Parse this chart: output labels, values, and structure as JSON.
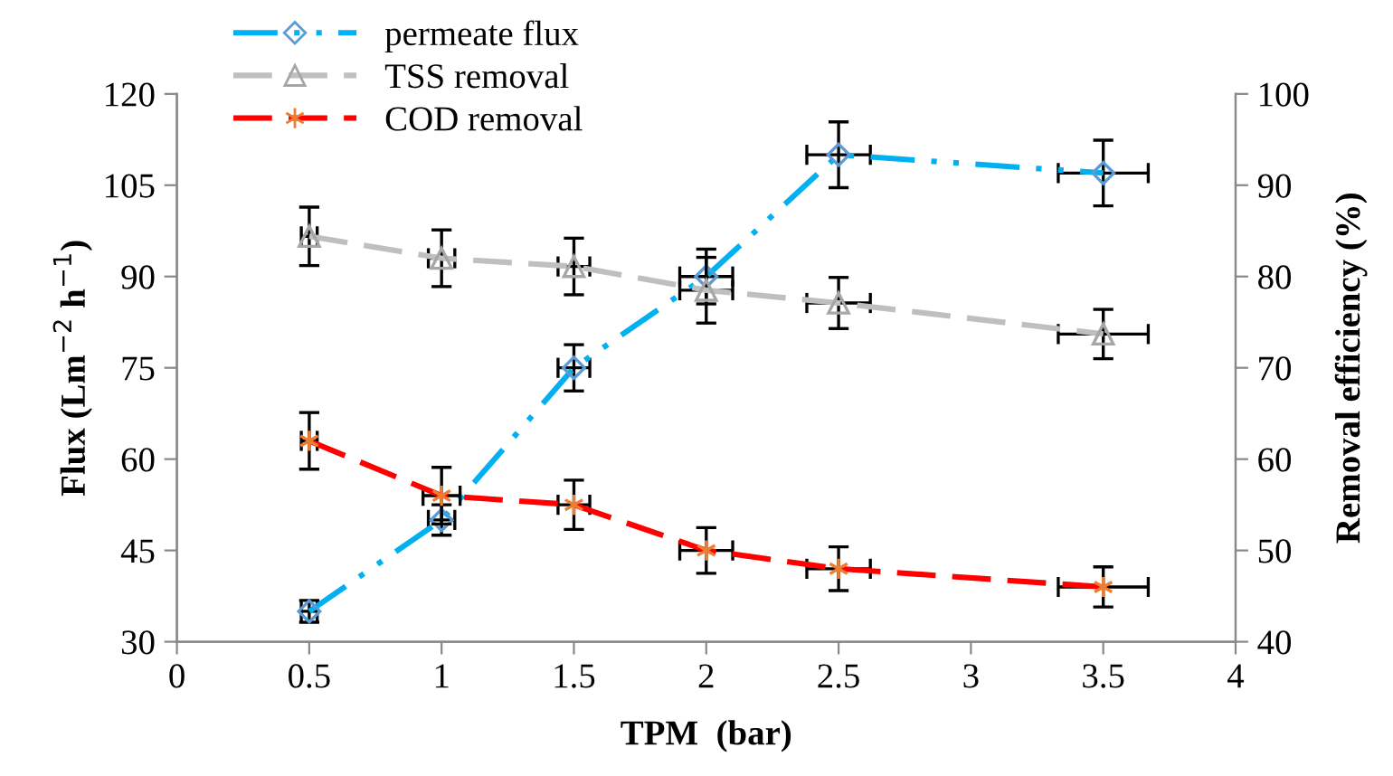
{
  "chart_data": {
    "type": "line",
    "x": [
      0.5,
      1,
      1.5,
      2,
      2.5,
      3.5
    ],
    "xlabel": "TPM  (bar)",
    "ylabel": "Flux (Lm$^{−2}$ h$^{−1}$)",
    "y2label": "Removal efficiency (%)",
    "xlim": [
      0,
      4
    ],
    "xticks": [
      0,
      0.5,
      1,
      1.5,
      2,
      2.5,
      3,
      3.5,
      4
    ],
    "ylim": [
      30,
      120
    ],
    "yticks": [
      30,
      45,
      60,
      75,
      90,
      105,
      120
    ],
    "y2lim": [
      40,
      100
    ],
    "y2ticks": [
      40,
      50,
      60,
      70,
      80,
      90,
      100
    ],
    "legend": "top left",
    "grid": false,
    "series": [
      {
        "name": "permeate flux",
        "color": "#00b0f0",
        "marker": "diamond",
        "line_style": "dashdot",
        "values": [
          35,
          50,
          75,
          90,
          110,
          107
        ],
        "errors": [
          1.8,
          2.5,
          3.8,
          4.5,
          5.4,
          5.4
        ],
        "xerrors": [
          0.03,
          0.05,
          0.06,
          0.1,
          0.12,
          0.17
        ]
      },
      {
        "name": "TSS removal",
        "color": "#bfbfbf",
        "marker": "triangle",
        "line_style": "dashed",
        "axis": "y2",
        "values": [
          84.4,
          82,
          81.1,
          78.5,
          77.1,
          73.7
        ],
        "errors": [
          3.2,
          3.1,
          3.1,
          3.6,
          2.8,
          2.7
        ],
        "xerrors": [
          0.03,
          0.05,
          0.06,
          0.1,
          0.12,
          0.17
        ]
      },
      {
        "name": "COD removal",
        "color": "#ff0000",
        "marker": "cross",
        "line_style": "dashed",
        "axis": "y2",
        "values": [
          62,
          56,
          55,
          50,
          48,
          46
        ],
        "errors": [
          3.1,
          3.1,
          2.7,
          2.5,
          2.4,
          2.2
        ],
        "xerrors": [
          0.03,
          0.07,
          0.06,
          0.1,
          0.12,
          0.17
        ]
      }
    ]
  }
}
